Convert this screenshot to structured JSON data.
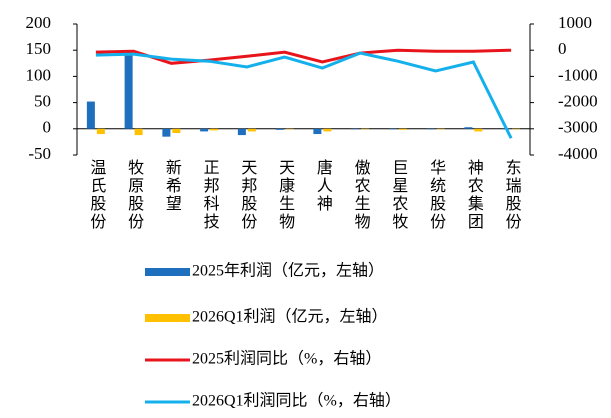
{
  "chart_data": {
    "type": "bar",
    "categories": [
      "温氏股份",
      "牧原股份",
      "新希望",
      "正邦科技",
      "天邦股份",
      "天康生物",
      "唐人神",
      "傲农生物",
      "巨星农牧",
      "华统股份",
      "神农集团",
      "东瑞股份"
    ],
    "series": [
      {
        "name": "2025年利润（亿元，左轴）",
        "type": "bar",
        "color": "#1f6fbf",
        "values": [
          52,
          150,
          -15,
          -5,
          -12,
          -2,
          -10,
          0,
          -1,
          -1,
          3,
          0
        ]
      },
      {
        "name": "2026Q1利润（亿元，左轴）",
        "type": "bar",
        "color": "#ffc000",
        "values": [
          -10,
          -12,
          -8,
          -3,
          -5,
          -1,
          -5,
          0,
          -2,
          -1,
          -5,
          0
        ]
      },
      {
        "name": "2025利润同比（%，右轴）",
        "type": "line",
        "axis": "y2",
        "color": "#e8141b",
        "values": [
          -75,
          -40,
          -500,
          -380,
          -230,
          -75,
          -450,
          -110,
          0,
          -40,
          -40,
          0
        ]
      },
      {
        "name": "2026Q1利润同比（%，右轴）",
        "type": "line",
        "axis": "y2",
        "color": "#14b0ec",
        "values": [
          -190,
          -150,
          -340,
          -420,
          -640,
          -260,
          -680,
          -110,
          -420,
          -790,
          -450,
          -3360
        ]
      }
    ],
    "ylim": [
      -50,
      200
    ],
    "yticks": [
      -50,
      0,
      50,
      100,
      150,
      200
    ],
    "y2lim": [
      -4000,
      1000
    ],
    "y2ticks": [
      -4000,
      -3000,
      -2000,
      -1000,
      0,
      1000
    ],
    "grid": false
  }
}
